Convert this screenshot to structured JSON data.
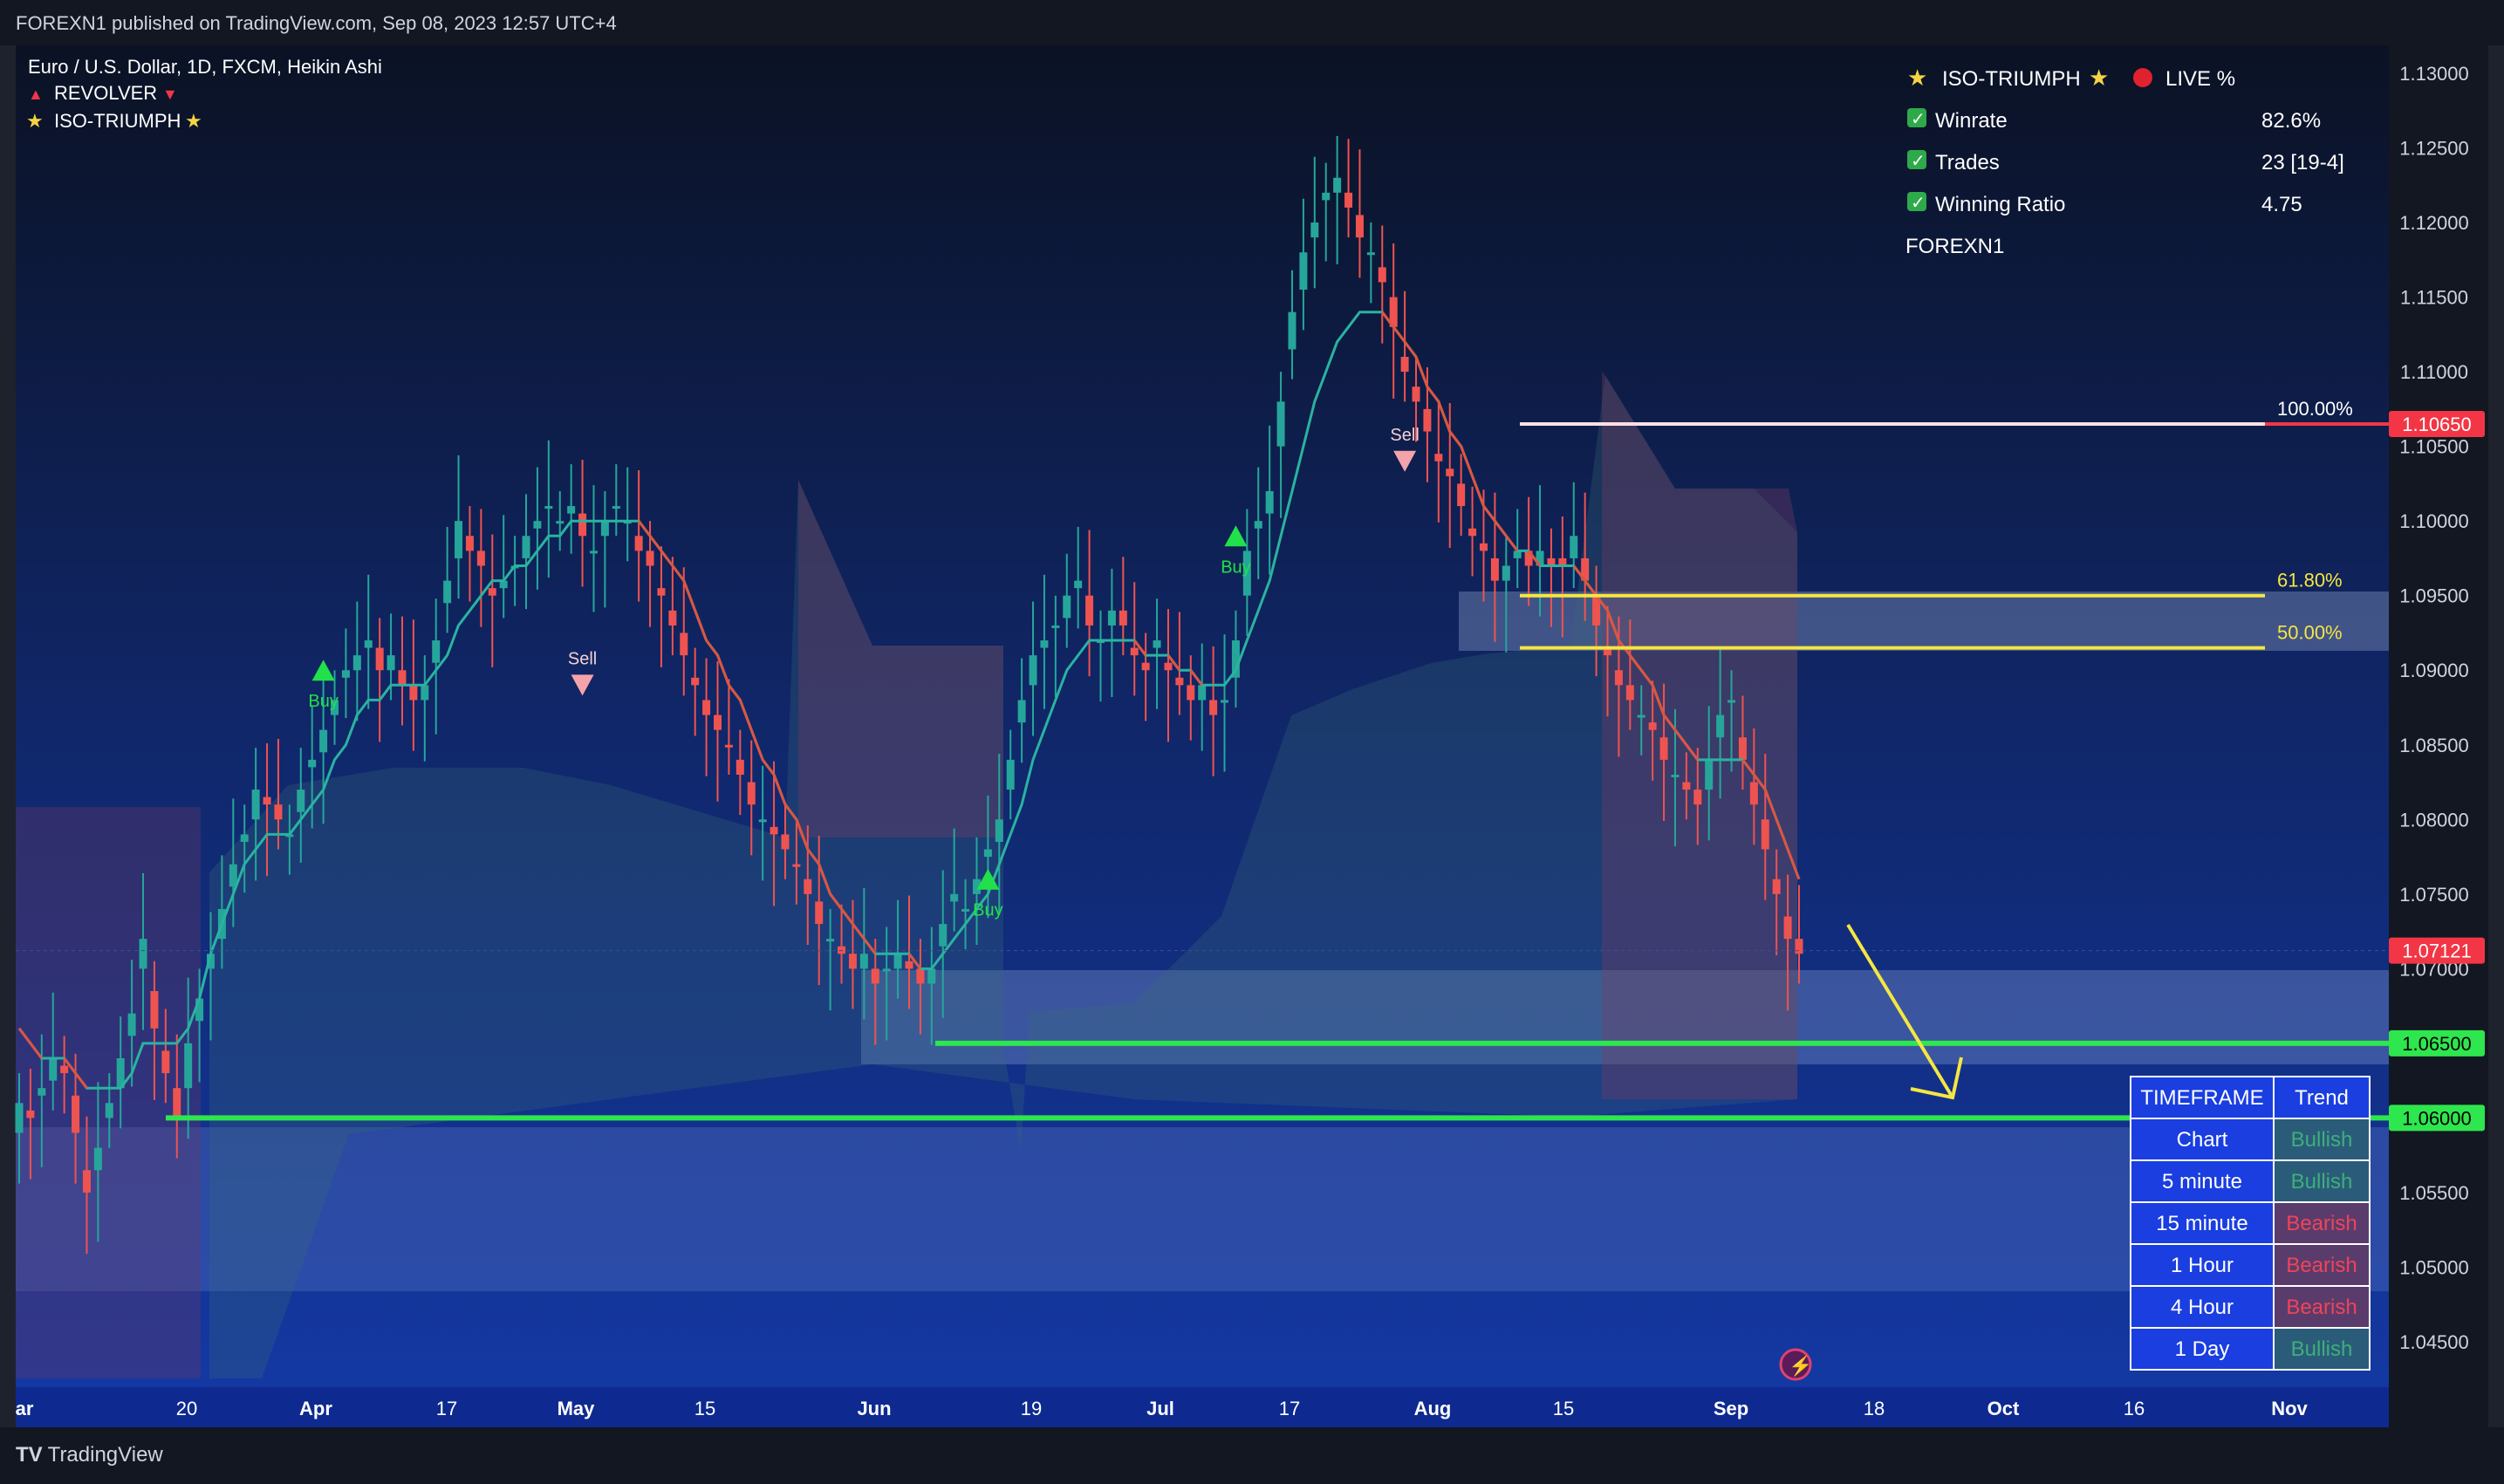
{
  "header": {
    "published": "FOREXN1 published on TradingView.com, Sep 08, 2023 12:57 UTC+4"
  },
  "legend": {
    "symbol": "Euro / U.S. Dollar, 1D, FXCM, Heikin Ashi",
    "revolver": "REVOLVER",
    "iso": "ISO-TRIUMPH"
  },
  "stats": {
    "title": "ISO-TRIUMPH",
    "live": "LIVE %",
    "rows": [
      {
        "label": "Winrate",
        "value": "82.6%"
      },
      {
        "label": "Trades",
        "value": "23 [19-4]"
      },
      {
        "label": "Winning Ratio",
        "value": "4.75"
      }
    ],
    "author": "FOREXN1"
  },
  "fib": {
    "l100": "100.00%",
    "l618": "61.80%",
    "l50": "50.00%"
  },
  "signals": {
    "buy": "Buy",
    "sell": "Sell"
  },
  "price_tags": [
    {
      "value": "1.10650",
      "color": "#f23645"
    },
    {
      "value": "1.07121",
      "color": "#f23645"
    },
    {
      "value": "1.06500",
      "color": "#2ee64e"
    },
    {
      "value": "1.06000",
      "color": "#2ee64e"
    }
  ],
  "trend_table": {
    "headers": [
      "TIMEFRAME",
      "Trend"
    ],
    "rows": [
      {
        "timeframe": "Chart",
        "trend": "Bullish"
      },
      {
        "timeframe": "5 minute",
        "trend": "Bullish"
      },
      {
        "timeframe": "15 minute",
        "trend": "Bearish"
      },
      {
        "timeframe": "1 Hour",
        "trend": "Bearish"
      },
      {
        "timeframe": "4 Hour",
        "trend": "Bearish"
      },
      {
        "timeframe": "1 Day",
        "trend": "Bullish"
      }
    ]
  },
  "footer": {
    "brand": "TradingView"
  },
  "colors": {
    "bull": "#26a69a",
    "bear": "#ef5350",
    "green_line": "#2ee64e",
    "fib_yellow": "#f5e642",
    "bg_top": "#0b1224",
    "bg_bottom": "#1439a6"
  },
  "chart_data": {
    "type": "candlestick",
    "title": "Euro / U.S. Dollar, 1D, FXCM, Heikin Ashi",
    "ylim": [
      1.04,
      1.132
    ],
    "y_ticks": [
      "1.13000",
      "1.12500",
      "1.12000",
      "1.11500",
      "1.11000",
      "1.10500",
      "1.10000",
      "1.09500",
      "1.09000",
      "1.08500",
      "1.08000",
      "1.07500",
      "1.07000",
      "1.06500",
      "1.06000",
      "1.05500",
      "1.05000",
      "1.04500"
    ],
    "x_ticks": [
      "ar",
      "20",
      "Apr",
      "17",
      "May",
      "15",
      "Jun",
      "19",
      "Jul",
      "17",
      "Aug",
      "15",
      "Sep",
      "18",
      "Oct",
      "16",
      "Nov"
    ],
    "series": [
      {
        "name": "EURUSD Heikin Ashi close",
        "values": [
          1.061,
          1.06,
          1.062,
          1.064,
          1.063,
          1.059,
          1.055,
          1.058,
          1.061,
          1.064,
          1.067,
          1.072,
          1.066,
          1.063,
          1.06,
          1.065,
          1.068,
          1.071,
          1.074,
          1.077,
          1.079,
          1.082,
          1.081,
          1.08,
          1.079,
          1.082,
          1.084,
          1.086,
          1.088,
          1.09,
          1.091,
          1.092,
          1.09,
          1.091,
          1.089,
          1.088,
          1.089,
          1.092,
          1.096,
          1.1,
          1.098,
          1.097,
          1.095,
          1.096,
          1.097,
          1.099,
          1.1,
          1.101,
          1.1,
          1.101,
          1.099,
          1.098,
          1.1,
          1.101,
          1.1,
          1.098,
          1.097,
          1.095,
          1.093,
          1.091,
          1.089,
          1.087,
          1.086,
          1.085,
          1.083,
          1.081,
          1.08,
          1.079,
          1.078,
          1.077,
          1.075,
          1.073,
          1.072,
          1.071,
          1.07,
          1.071,
          1.069,
          1.07,
          1.071,
          1.07,
          1.069,
          1.07,
          1.073,
          1.075,
          1.074,
          1.076,
          1.078,
          1.08,
          1.084,
          1.088,
          1.091,
          1.092,
          1.093,
          1.095,
          1.096,
          1.093,
          1.092,
          1.094,
          1.093,
          1.091,
          1.09,
          1.092,
          1.09,
          1.089,
          1.088,
          1.089,
          1.087,
          1.088,
          1.092,
          1.098,
          1.1,
          1.102,
          1.108,
          1.114,
          1.118,
          1.12,
          1.122,
          1.123,
          1.121,
          1.119,
          1.118,
          1.116,
          1.113,
          1.11,
          1.108,
          1.106,
          1.104,
          1.103,
          1.101,
          1.099,
          1.098,
          1.096,
          1.097,
          1.098,
          1.097,
          1.098,
          1.097,
          1.097,
          1.099,
          1.096,
          1.093,
          1.091,
          1.089,
          1.088,
          1.087,
          1.086,
          1.084,
          1.083,
          1.082,
          1.081,
          1.084,
          1.087,
          1.088,
          1.084,
          1.081,
          1.078,
          1.075,
          1.072,
          1.071
        ]
      },
      {
        "name": "REVOLVER line",
        "values": [
          1.066,
          1.065,
          1.064,
          1.064,
          1.064,
          1.063,
          1.062,
          1.062,
          1.062,
          1.062,
          1.063,
          1.065,
          1.065,
          1.065,
          1.065,
          1.066,
          1.068,
          1.071,
          1.073,
          1.075,
          1.077,
          1.078,
          1.079,
          1.079,
          1.079,
          1.08,
          1.081,
          1.082,
          1.084,
          1.085,
          1.087,
          1.088,
          1.088,
          1.089,
          1.089,
          1.089,
          1.089,
          1.09,
          1.091,
          1.093,
          1.094,
          1.095,
          1.096,
          1.096,
          1.097,
          1.097,
          1.098,
          1.099,
          1.099,
          1.1,
          1.1,
          1.1,
          1.1,
          1.1,
          1.1,
          1.1,
          1.099,
          1.098,
          1.097,
          1.096,
          1.094,
          1.092,
          1.091,
          1.089,
          1.088,
          1.086,
          1.084,
          1.083,
          1.081,
          1.08,
          1.078,
          1.077,
          1.075,
          1.074,
          1.073,
          1.072,
          1.071,
          1.071,
          1.071,
          1.071,
          1.07,
          1.07,
          1.071,
          1.072,
          1.073,
          1.074,
          1.075,
          1.077,
          1.079,
          1.081,
          1.084,
          1.086,
          1.088,
          1.09,
          1.091,
          1.092,
          1.092,
          1.092,
          1.092,
          1.092,
          1.091,
          1.091,
          1.091,
          1.09,
          1.09,
          1.089,
          1.089,
          1.089,
          1.09,
          1.092,
          1.094,
          1.096,
          1.099,
          1.102,
          1.105,
          1.108,
          1.11,
          1.112,
          1.113,
          1.114,
          1.114,
          1.114,
          1.113,
          1.112,
          1.111,
          1.109,
          1.108,
          1.106,
          1.105,
          1.103,
          1.101,
          1.1,
          1.099,
          1.098,
          1.098,
          1.097,
          1.097,
          1.097,
          1.097,
          1.096,
          1.095,
          1.094,
          1.092,
          1.091,
          1.09,
          1.089,
          1.087,
          1.086,
          1.085,
          1.084,
          1.084,
          1.084,
          1.084,
          1.084,
          1.083,
          1.082,
          1.08,
          1.078,
          1.076
        ]
      }
    ],
    "signals": [
      {
        "type": "Buy",
        "index": 27,
        "price": 1.09
      },
      {
        "type": "Sell",
        "index": 50,
        "price": 1.089
      },
      {
        "type": "Buy",
        "index": 86,
        "price": 1.076
      },
      {
        "type": "Buy",
        "index": 108,
        "price": 1.099
      },
      {
        "type": "Sell",
        "index": 123,
        "price": 1.104
      }
    ],
    "levels": [
      {
        "label": "100.00%",
        "price": 1.1065
      },
      {
        "label": "61.80%",
        "price": 1.095
      },
      {
        "label": "50.00%",
        "price": 1.0915
      },
      {
        "price": 1.065
      },
      {
        "price": 1.06
      }
    ],
    "last_price": 1.07121
  }
}
